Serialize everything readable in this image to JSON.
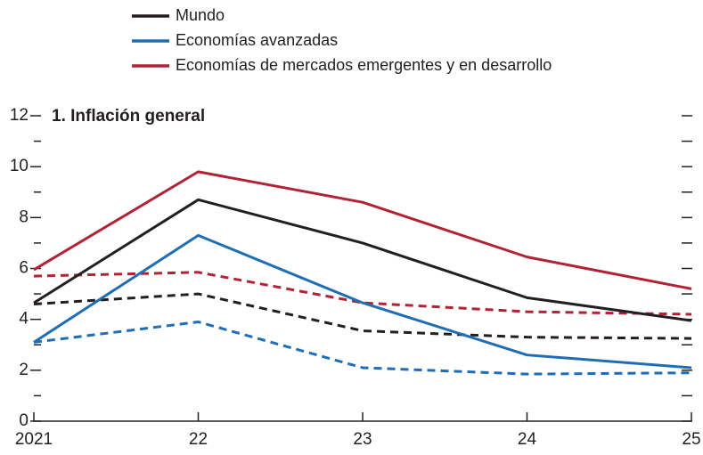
{
  "chart_data": {
    "type": "line",
    "subtitle": "1. Inflación general",
    "categories": [
      "2021",
      "22",
      "23",
      "24",
      "25"
    ],
    "series": [
      {
        "name": "Mundo",
        "color": "#231f20",
        "values": [
          4.65,
          8.7,
          7.0,
          4.85,
          3.95
        ],
        "dashed_values": [
          4.6,
          5.0,
          3.55,
          3.3,
          3.25
        ]
      },
      {
        "name": "Economías avanzadas",
        "color": "#1f6db5",
        "values": [
          3.1,
          7.3,
          4.65,
          2.6,
          2.1
        ],
        "dashed_values": [
          3.1,
          3.9,
          2.1,
          1.85,
          1.9
        ]
      },
      {
        "name": "Economías de mercados emergentes y en desarrollo",
        "color": "#b22234",
        "values": [
          5.95,
          9.8,
          8.6,
          6.45,
          5.2
        ],
        "dashed_values": [
          5.7,
          5.85,
          4.65,
          4.3,
          4.2
        ]
      }
    ],
    "ylim": [
      0,
      12
    ],
    "yticks": [
      0,
      2,
      4,
      6,
      8,
      10,
      12
    ],
    "minor_yticks": [
      1,
      3,
      5,
      7,
      9,
      11
    ]
  }
}
